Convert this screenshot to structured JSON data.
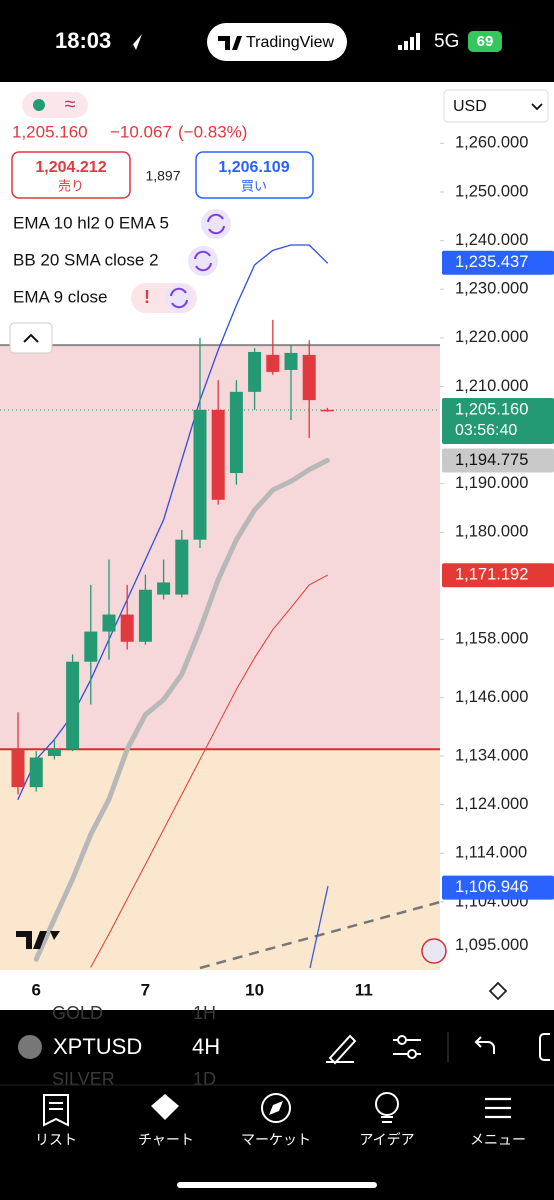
{
  "status_bar": {
    "time": "18:03",
    "app": "TradingView",
    "network": "5G",
    "battery": "69"
  },
  "header": {
    "approx": "≈",
    "last": "1,205.160",
    "change": "−10.067",
    "change_pct": "(−0.83%)",
    "sell_price": "1,204.212",
    "sell": "売り",
    "spread": "1,897",
    "buy_price": "1,206.109",
    "buy": "買い",
    "currency": "USD"
  },
  "indicators": [
    "EMA 10 hl2 0 EMA 5",
    "BB 20 SMA close 2",
    "EMA 9 close"
  ],
  "alert": "!",
  "chart_data": {
    "type": "candlestick",
    "categories": [
      null,
      "6",
      null,
      null,
      null,
      null,
      null,
      "7",
      null,
      null,
      null,
      null,
      null,
      "10",
      null,
      null,
      null,
      null,
      null,
      "11"
    ],
    "open": [
      1135.4,
      1127.6,
      1134,
      1135.4,
      1153.4,
      1159.6,
      1163.1,
      1157.5,
      1167.2,
      1167.2,
      1178.5,
      1205.2,
      1192.2,
      1208.9,
      1216.5,
      1213.4,
      1216.5,
      1205.2,
      null,
      null
    ],
    "high": [
      1143,
      1135,
      1137.4,
      1154.9,
      1169.2,
      1174.4,
      1169.2,
      1171.3,
      1174.4,
      1180.5,
      1220,
      1211.3,
      1211.3,
      1217.9,
      1223.7,
      1218.5,
      1219.5,
      1205.6,
      null,
      null
    ],
    "low": [
      1126.1,
      1126.7,
      1133.3,
      1135,
      1144.6,
      1153.8,
      1155.9,
      1156.9,
      1166.2,
      1166.6,
      1176.8,
      1185.7,
      1189.8,
      1205.2,
      1212.4,
      1203.1,
      1199.4,
      1204.8,
      null,
      null
    ],
    "close": [
      1127.6,
      1133.7,
      1135.4,
      1153.4,
      1159.6,
      1163.1,
      1157.5,
      1168.2,
      1169.7,
      1178.5,
      1205.2,
      1186.7,
      1208.9,
      1217.1,
      1213,
      1216.9,
      1207.2,
      1205.16,
      null,
      null
    ],
    "up_color": "#239a74",
    "down_color": "#e0393e",
    "lines": [
      {
        "color": "#2f4fe0",
        "width": 1.3,
        "values": [
          1125.1,
          1133.3,
          1137.4,
          1142.5,
          1149.7,
          1158,
          1166.2,
          1174.4,
          1182.6,
          1194.9,
          1207.2,
          1217.5,
          1226.7,
          1235,
          1238,
          1239.1,
          1239.1,
          1235.4,
          null,
          null
        ]
      },
      {
        "color": "#b8b8b8",
        "width": 5,
        "values": [
          null,
          1092.2,
          1100.5,
          1108.7,
          1117.9,
          1125.1,
          1135.4,
          1142.5,
          1145.6,
          1150.8,
          1160,
          1170.3,
          1178.5,
          1184.6,
          1188.7,
          1190.5,
          1192.9,
          1194.8,
          null,
          null
        ]
      },
      {
        "color": "#e53935",
        "width": 1,
        "values": [
          null,
          null,
          null,
          null,
          1090.6,
          1097.4,
          1104.6,
          1111.7,
          1118.9,
          1126.1,
          1133.3,
          1140.5,
          1147.7,
          1154.2,
          1160,
          1164.5,
          1169.2,
          1171.2,
          null,
          null
        ]
      }
    ],
    "zones": [
      {
        "from": 1218.5,
        "to": 1135.4,
        "color": "#f6d7da"
      },
      {
        "from": 1135.4,
        "to": 1090,
        "color": "#fae7cd"
      }
    ],
    "levels": [
      {
        "value": 1218.5,
        "color": "#8a8a8a"
      },
      {
        "value": 1135.4,
        "color": "#d32f2f"
      }
    ],
    "ylim": [
      1090,
      1272
    ],
    "yticks": [
      {
        "value": 1260,
        "label": "1,260.000"
      },
      {
        "value": 1250,
        "label": "1,250.000"
      },
      {
        "value": 1240,
        "label": "1,240.000"
      },
      {
        "value": 1230,
        "label": "1,230.000"
      },
      {
        "value": 1220,
        "label": "1,220.000"
      },
      {
        "value": 1210,
        "label": "1,210.000"
      },
      {
        "value": 1190,
        "label": "1,190.000"
      },
      {
        "value": 1180,
        "label": "1,180.000"
      },
      {
        "value": 1158,
        "label": "1,158.000"
      },
      {
        "value": 1146,
        "label": "1,146.000"
      },
      {
        "value": 1134,
        "label": "1,134.000"
      },
      {
        "value": 1124,
        "label": "1,124.000"
      },
      {
        "value": 1114,
        "label": "1,114.000"
      },
      {
        "value": 1104,
        "label": "1,104.000"
      },
      {
        "value": 1095,
        "label": "1,095.000"
      }
    ],
    "price_labels": [
      {
        "value": 1235.437,
        "label": "1,235.437",
        "color": "#2962ff"
      },
      {
        "value": 1205.16,
        "label": "1,205.160",
        "color": "#239a74",
        "countdown": "03:56:40"
      },
      {
        "value": 1194.775,
        "label": "1,194.775",
        "color": "#c9c9c9"
      },
      {
        "value": 1171.192,
        "label": "1,171.192",
        "color": "#e53935"
      },
      {
        "value": 1106.946,
        "label": "1,106.946",
        "color": "#2962ff"
      }
    ]
  },
  "toolbar": {
    "symbol": "XPTUSD",
    "interval": "4H",
    "ghost_symbols": [
      "GOLD",
      "SILVER"
    ],
    "ghost_intervals": [
      "1H",
      "1D"
    ]
  },
  "tabs": [
    "リスト",
    "チャート",
    "マーケット",
    "アイデア",
    "メニュー"
  ]
}
